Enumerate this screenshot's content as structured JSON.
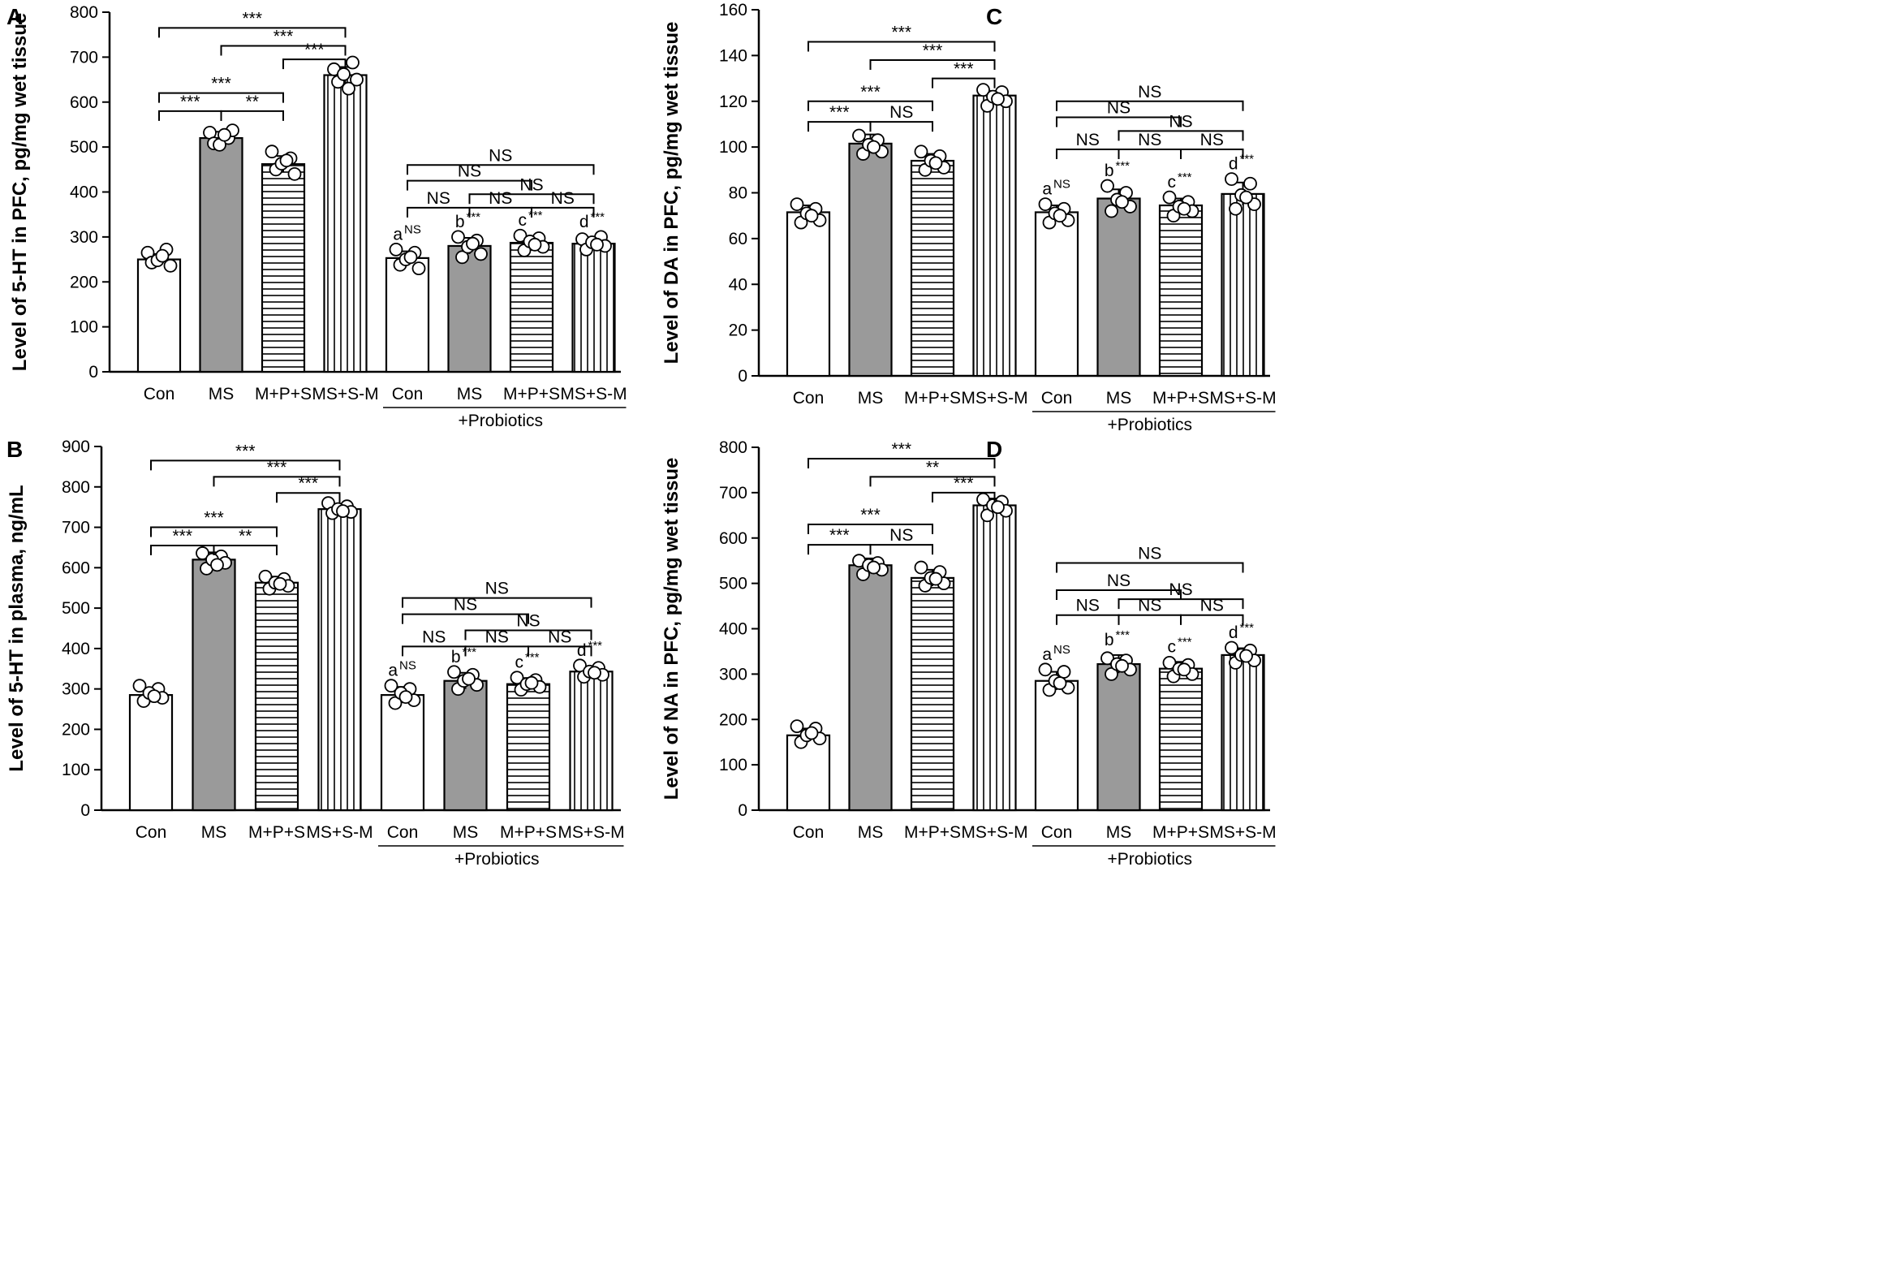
{
  "chart_data": [
    {
      "panel": "A",
      "type": "bar",
      "ylabel": "Level of 5-HT in PFC, pg/mg wet tissue",
      "ylim": [
        0,
        800
      ],
      "yticks": [
        "0",
        "100",
        "200",
        "300",
        "400",
        "500",
        "600",
        "700",
        "800"
      ],
      "categories": [
        "Con",
        "MS",
        "M+P+S",
        "MS+S-M",
        "Con",
        "MS",
        "M+P+S",
        "MS+S-M"
      ],
      "group_label": "+Probiotics",
      "values": [
        250,
        520,
        462,
        660,
        253,
        280,
        287,
        285
      ],
      "errors": [
        12,
        14,
        18,
        18,
        15,
        18,
        12,
        10
      ],
      "points": [
        [
          265,
          243,
          272,
          236,
          248,
          258
        ],
        [
          532,
          508,
          520,
          537,
          505,
          527
        ],
        [
          490,
          450,
          475,
          440,
          463,
          470
        ],
        [
          673,
          645,
          688,
          650,
          662,
          630
        ],
        [
          272,
          238,
          265,
          230,
          250,
          255
        ],
        [
          300,
          255,
          292,
          262,
          278,
          285
        ],
        [
          303,
          270,
          297,
          278,
          290,
          283
        ],
        [
          295,
          272,
          300,
          280,
          288,
          283
        ]
      ],
      "fills": [
        "white",
        "gray",
        "hlines",
        "vlines",
        "white",
        "gray",
        "hlines",
        "vlines"
      ],
      "bar_labels": [
        {
          "bar": 4,
          "letter": "a",
          "sup": "NS"
        },
        {
          "bar": 5,
          "letter": "b",
          "sup": "***"
        },
        {
          "bar": 6,
          "letter": "c",
          "sup": "***"
        },
        {
          "bar": 7,
          "letter": "d",
          "sup": "***"
        }
      ],
      "brackets": [
        {
          "from": 0,
          "to": 3,
          "y": 765,
          "label": "***"
        },
        {
          "from": 1,
          "to": 3,
          "y": 725,
          "label": "***"
        },
        {
          "from": 2,
          "to": 3,
          "y": 695,
          "label": "***"
        },
        {
          "from": 0,
          "to": 2,
          "y": 620,
          "label": "***"
        },
        {
          "from": 0,
          "to": 1,
          "y": 580,
          "label": "***"
        },
        {
          "from": 1,
          "to": 2,
          "y": 580,
          "label": "**"
        },
        {
          "from": 4,
          "to": 7,
          "y": 460,
          "label": "NS"
        },
        {
          "from": 4,
          "to": 6,
          "y": 425,
          "label": "NS"
        },
        {
          "from": 5,
          "to": 7,
          "y": 395,
          "label": "NS"
        },
        {
          "from": 4,
          "to": 5,
          "y": 365,
          "label": "NS"
        },
        {
          "from": 5,
          "to": 6,
          "y": 365,
          "label": "NS"
        },
        {
          "from": 6,
          "to": 7,
          "y": 365,
          "label": "NS"
        }
      ]
    },
    {
      "panel": "B",
      "type": "bar",
      "ylabel": "Level of 5-HT in plasma, ng/mL",
      "ylim": [
        0,
        900
      ],
      "yticks": [
        "0",
        "100",
        "200",
        "300",
        "400",
        "500",
        "600",
        "700",
        "800",
        "900"
      ],
      "categories": [
        "Con",
        "MS",
        "M+P+S",
        "MS+S-M",
        "Con",
        "MS",
        "M+P+S",
        "MS+S-M"
      ],
      "group_label": "+Probiotics",
      "values": [
        285,
        620,
        563,
        745,
        285,
        320,
        312,
        343
      ],
      "errors": [
        18,
        18,
        15,
        12,
        20,
        20,
        15,
        12
      ],
      "points": [
        [
          308,
          270,
          300,
          278,
          290,
          282
        ],
        [
          636,
          598,
          628,
          612,
          620,
          607
        ],
        [
          578,
          548,
          572,
          555,
          563,
          560
        ],
        [
          760,
          735,
          752,
          738,
          745,
          740
        ],
        [
          308,
          265,
          300,
          272,
          290,
          280
        ],
        [
          342,
          300,
          335,
          310,
          320,
          325
        ],
        [
          328,
          298,
          322,
          305,
          312,
          315
        ],
        [
          358,
          330,
          352,
          335,
          343,
          340
        ]
      ],
      "fills": [
        "white",
        "gray",
        "hlines",
        "vlines",
        "white",
        "gray",
        "hlines",
        "vlines"
      ],
      "bar_labels": [
        {
          "bar": 4,
          "letter": "a",
          "sup": "NS"
        },
        {
          "bar": 5,
          "letter": "b",
          "sup": "***"
        },
        {
          "bar": 6,
          "letter": "c",
          "sup": "***"
        },
        {
          "bar": 7,
          "letter": "d",
          "sup": "***"
        }
      ],
      "brackets": [
        {
          "from": 0,
          "to": 3,
          "y": 865,
          "label": "***"
        },
        {
          "from": 1,
          "to": 3,
          "y": 825,
          "label": "***"
        },
        {
          "from": 2,
          "to": 3,
          "y": 785,
          "label": "***"
        },
        {
          "from": 0,
          "to": 2,
          "y": 700,
          "label": "***"
        },
        {
          "from": 0,
          "to": 1,
          "y": 655,
          "label": "***"
        },
        {
          "from": 1,
          "to": 2,
          "y": 655,
          "label": "**"
        },
        {
          "from": 4,
          "to": 7,
          "y": 525,
          "label": "NS"
        },
        {
          "from": 4,
          "to": 6,
          "y": 485,
          "label": "NS"
        },
        {
          "from": 5,
          "to": 7,
          "y": 445,
          "label": "NS"
        },
        {
          "from": 4,
          "to": 5,
          "y": 405,
          "label": "NS"
        },
        {
          "from": 5,
          "to": 6,
          "y": 405,
          "label": "NS"
        },
        {
          "from": 6,
          "to": 7,
          "y": 405,
          "label": "NS"
        }
      ]
    },
    {
      "panel": "C",
      "type": "bar",
      "ylabel": "Level of DA in PFC, pg/mg wet tissue",
      "ylim": [
        0,
        160
      ],
      "yticks": [
        "0",
        "20",
        "40",
        "60",
        "80",
        "100",
        "120",
        "140",
        "160"
      ],
      "categories": [
        "Con",
        "MS",
        "M+P+S",
        "MS+S-M",
        "Con",
        "MS",
        "M+P+S",
        "MS+S-M"
      ],
      "group_label": "+Probiotics",
      "values": [
        71.5,
        101.5,
        94,
        122.5,
        71.5,
        77.5,
        74.5,
        79.5
      ],
      "errors": [
        3,
        4,
        3,
        2,
        3,
        4,
        3,
        5
      ],
      "points": [
        [
          75,
          67,
          73,
          68,
          71,
          70
        ],
        [
          105,
          97,
          103,
          98,
          101,
          100
        ],
        [
          98,
          90,
          96,
          91,
          94,
          93
        ],
        [
          125,
          118,
          124,
          120,
          122,
          121
        ],
        [
          75,
          67,
          73,
          68,
          71,
          70
        ],
        [
          83,
          72,
          80,
          74,
          77,
          76
        ],
        [
          78,
          70,
          76,
          72,
          74,
          73
        ],
        [
          86,
          73,
          84,
          75,
          79,
          78
        ]
      ],
      "fills": [
        "white",
        "gray",
        "hlines",
        "vlines",
        "white",
        "gray",
        "hlines",
        "vlines"
      ],
      "bar_labels": [
        {
          "bar": 4,
          "letter": "a",
          "sup": "NS"
        },
        {
          "bar": 5,
          "letter": "b",
          "sup": "***"
        },
        {
          "bar": 6,
          "letter": "c",
          "sup": "***"
        },
        {
          "bar": 7,
          "letter": "d",
          "sup": "***"
        }
      ],
      "brackets": [
        {
          "from": 0,
          "to": 3,
          "y": 146,
          "label": "***"
        },
        {
          "from": 1,
          "to": 3,
          "y": 138,
          "label": "***"
        },
        {
          "from": 2,
          "to": 3,
          "y": 130,
          "label": "***"
        },
        {
          "from": 0,
          "to": 2,
          "y": 120,
          "label": "***"
        },
        {
          "from": 0,
          "to": 1,
          "y": 111,
          "label": "***"
        },
        {
          "from": 1,
          "to": 2,
          "y": 111,
          "label": "NS"
        },
        {
          "from": 4,
          "to": 7,
          "y": 120,
          "label": "NS"
        },
        {
          "from": 4,
          "to": 6,
          "y": 113,
          "label": "NS"
        },
        {
          "from": 5,
          "to": 7,
          "y": 107,
          "label": "NS"
        },
        {
          "from": 4,
          "to": 5,
          "y": 99,
          "label": "NS"
        },
        {
          "from": 5,
          "to": 6,
          "y": 99,
          "label": "NS"
        },
        {
          "from": 6,
          "to": 7,
          "y": 99,
          "label": "NS"
        }
      ]
    },
    {
      "panel": "D",
      "type": "bar",
      "ylabel": "Level of NA in PFC, pg/mg wet tissue",
      "ylim": [
        0,
        800
      ],
      "yticks": [
        "0",
        "100",
        "200",
        "300",
        "400",
        "500",
        "600",
        "700",
        "800"
      ],
      "categories": [
        "Con",
        "MS",
        "M+P+S",
        "MS+S-M",
        "Con",
        "MS",
        "M+P+S",
        "MS+S-M"
      ],
      "group_label": "+Probiotics",
      "values": [
        165,
        540,
        512,
        672,
        285,
        322,
        312,
        342
      ],
      "errors": [
        15,
        15,
        18,
        15,
        20,
        20,
        15,
        15
      ],
      "points": [
        [
          185,
          150,
          180,
          158,
          165,
          170
        ],
        [
          550,
          520,
          545,
          530,
          540,
          535
        ],
        [
          535,
          495,
          525,
          500,
          512,
          510
        ],
        [
          685,
          650,
          680,
          660,
          672,
          668
        ],
        [
          310,
          265,
          305,
          270,
          285,
          280
        ],
        [
          335,
          300,
          330,
          310,
          322,
          318
        ],
        [
          325,
          295,
          320,
          300,
          312,
          310
        ],
        [
          358,
          325,
          352,
          330,
          342,
          340
        ]
      ],
      "fills": [
        "white",
        "gray",
        "hlines",
        "vlines",
        "white",
        "gray",
        "hlines",
        "vlines"
      ],
      "bar_labels": [
        {
          "bar": 4,
          "letter": "a",
          "sup": "NS"
        },
        {
          "bar": 5,
          "letter": "b",
          "sup": "***"
        },
        {
          "bar": 6,
          "letter": "c",
          "sup": "***"
        },
        {
          "bar": 7,
          "letter": "d",
          "sup": "***"
        }
      ],
      "brackets": [
        {
          "from": 0,
          "to": 3,
          "y": 775,
          "label": "***"
        },
        {
          "from": 1,
          "to": 3,
          "y": 735,
          "label": "**"
        },
        {
          "from": 2,
          "to": 3,
          "y": 700,
          "label": "***"
        },
        {
          "from": 0,
          "to": 2,
          "y": 630,
          "label": "***"
        },
        {
          "from": 0,
          "to": 1,
          "y": 585,
          "label": "***"
        },
        {
          "from": 1,
          "to": 2,
          "y": 585,
          "label": "NS"
        },
        {
          "from": 4,
          "to": 7,
          "y": 545,
          "label": "NS"
        },
        {
          "from": 4,
          "to": 6,
          "y": 485,
          "label": "NS"
        },
        {
          "from": 5,
          "to": 7,
          "y": 465,
          "label": "NS"
        },
        {
          "from": 4,
          "to": 5,
          "y": 430,
          "label": "NS"
        },
        {
          "from": 5,
          "to": 6,
          "y": 430,
          "label": "NS"
        },
        {
          "from": 6,
          "to": 7,
          "y": 430,
          "label": "NS"
        }
      ]
    }
  ]
}
